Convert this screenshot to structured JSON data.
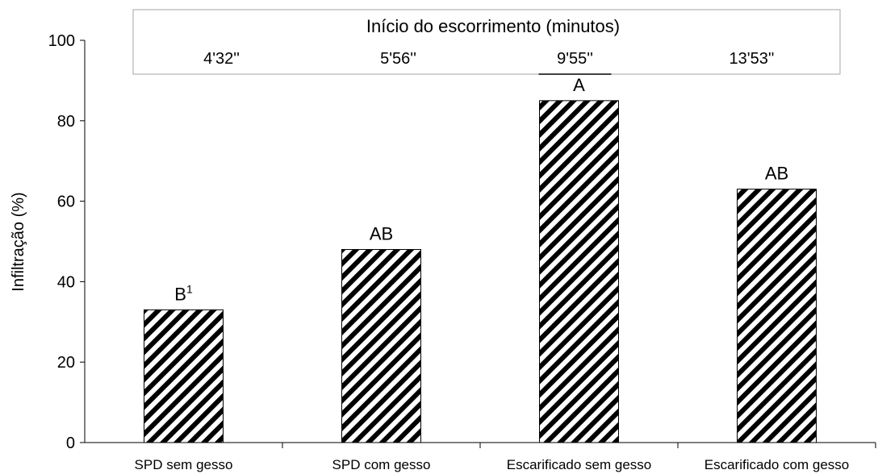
{
  "chart_data": {
    "type": "bar",
    "title": "",
    "xlabel": "",
    "ylabel": "Infiltração (%)",
    "ylim": [
      0,
      100
    ],
    "yticks": [
      0,
      20,
      40,
      60,
      80,
      100
    ],
    "grid": false,
    "categories": [
      "SPD sem gesso",
      "SPD com gesso",
      "Escarificado sem gesso",
      "Escarificado com gesso"
    ],
    "values": [
      33,
      48,
      85,
      63
    ],
    "bar_letters": [
      "B",
      "AB",
      "A",
      "AB"
    ],
    "footnote_marker": "1",
    "bar_fill": "diagonal black-white hatch",
    "colors": {
      "hatch": "#000000",
      "background": "#ffffff",
      "header_box_border": "#a6a6a6"
    },
    "runoff_header": {
      "title": "Início do escorrimento (minutos)",
      "values": [
        "4'32''",
        "5'56''",
        "9'55''",
        "13'53''"
      ]
    }
  }
}
